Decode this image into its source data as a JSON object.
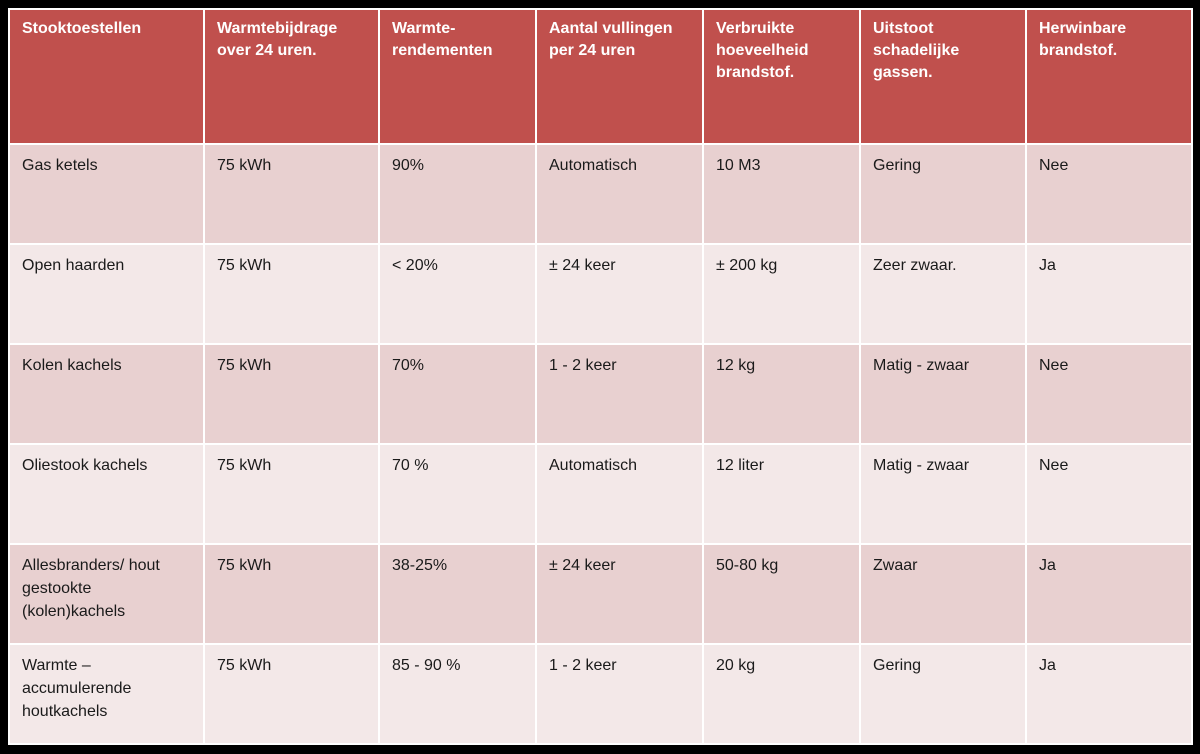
{
  "colors": {
    "header_bg": "#c0504d",
    "row_dark": "#e8d0d0",
    "row_light": "#f3e8e8",
    "border": "#ffffff",
    "frame": "#000000"
  },
  "table": {
    "headers": [
      "Stooktoestellen",
      "Warmtebijdrage over 24 uren.",
      "Warmte-\nrendementen",
      "Aantal vullingen per 24 uren",
      "Verbruikte hoeveelheid brandstof.",
      "Uitstoot schadelijke gassen.",
      "Herwinbare brandstof."
    ],
    "rows": [
      [
        "Gas ketels",
        "75 kWh",
        "90%",
        "Automatisch",
        "10 M3",
        "Gering",
        "Nee"
      ],
      [
        "Open haarden",
        "75 kWh",
        "< 20%",
        "± 24 keer",
        "± 200 kg",
        "Zeer zwaar.",
        "Ja"
      ],
      [
        "Kolen kachels",
        "75 kWh",
        "70%",
        "1 - 2 keer",
        "12 kg",
        "Matig - zwaar",
        "Nee"
      ],
      [
        "Oliestook kachels",
        "75 kWh",
        "70 %",
        "Automatisch",
        "12 liter",
        "Matig - zwaar",
        "Nee"
      ],
      [
        "Allesbranders/ hout gestookte (kolen)kachels",
        "75 kWh",
        "38-25%",
        "± 24 keer",
        "50-80 kg",
        "Zwaar",
        "Ja"
      ],
      [
        "Warmte – accumulerende houtkachels",
        "75 kWh",
        "85 - 90 %",
        "1 - 2 keer",
        "20 kg",
        "Gering",
        "Ja"
      ]
    ]
  }
}
